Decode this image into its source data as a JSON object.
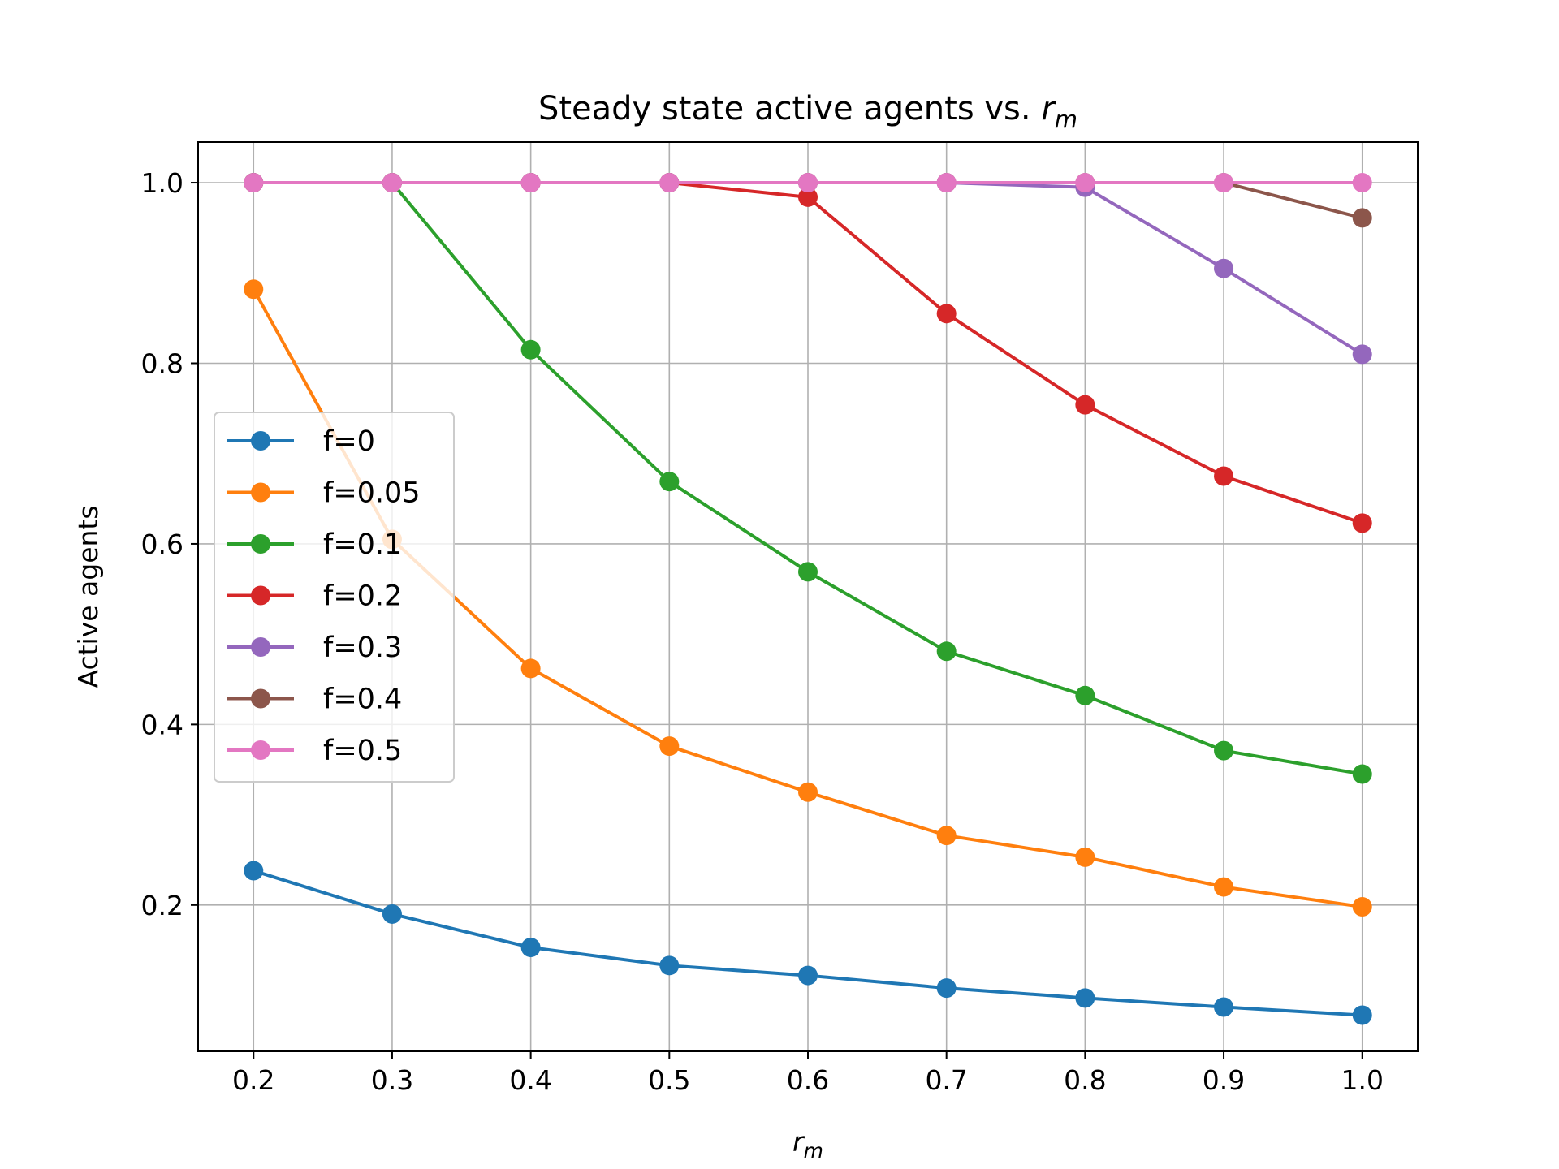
{
  "chart_data": {
    "type": "line",
    "title": "Steady state active agents vs. ",
    "title_math": {
      "base": "r",
      "sub": "m"
    },
    "xlabel_math": {
      "base": "r",
      "sub": "m"
    },
    "ylabel": "Active agents",
    "x": [
      0.2,
      0.3,
      0.4,
      0.5,
      0.6,
      0.7,
      0.8,
      0.9,
      1.0
    ],
    "xlim": [
      0.16,
      1.04
    ],
    "ylim": [
      0.038,
      1.045
    ],
    "xticks": [
      "0.2",
      "0.3",
      "0.4",
      "0.5",
      "0.6",
      "0.7",
      "0.8",
      "0.9",
      "1.0"
    ],
    "yticks": [
      "0.2",
      "0.4",
      "0.6",
      "0.8",
      "1.0"
    ],
    "grid": true,
    "legend_position": "center-left",
    "series": [
      {
        "name": "f=0",
        "color": "#1f77b4",
        "values": [
          0.238,
          0.19,
          0.153,
          0.133,
          0.122,
          0.108,
          0.097,
          0.087,
          0.078
        ]
      },
      {
        "name": "f=0.05",
        "color": "#ff7f0e",
        "values": [
          0.882,
          0.605,
          0.462,
          0.376,
          0.325,
          0.277,
          0.253,
          0.22,
          0.198
        ]
      },
      {
        "name": "f=0.1",
        "color": "#2ca02c",
        "values": [
          1.0,
          1.0,
          0.815,
          0.669,
          0.569,
          0.481,
          0.432,
          0.371,
          0.345
        ]
      },
      {
        "name": "f=0.2",
        "color": "#d62728",
        "values": [
          1.0,
          1.0,
          1.0,
          1.0,
          0.984,
          0.855,
          0.754,
          0.675,
          0.623
        ]
      },
      {
        "name": "f=0.3",
        "color": "#9467bd",
        "values": [
          1.0,
          1.0,
          1.0,
          1.0,
          1.0,
          1.0,
          0.995,
          0.905,
          0.81
        ]
      },
      {
        "name": "f=0.4",
        "color": "#8c564b",
        "values": [
          1.0,
          1.0,
          1.0,
          1.0,
          1.0,
          1.0,
          1.0,
          1.0,
          0.961
        ]
      },
      {
        "name": "f=0.5",
        "color": "#e377c2",
        "values": [
          1.0,
          1.0,
          1.0,
          1.0,
          1.0,
          1.0,
          1.0,
          1.0,
          1.0
        ]
      }
    ]
  }
}
